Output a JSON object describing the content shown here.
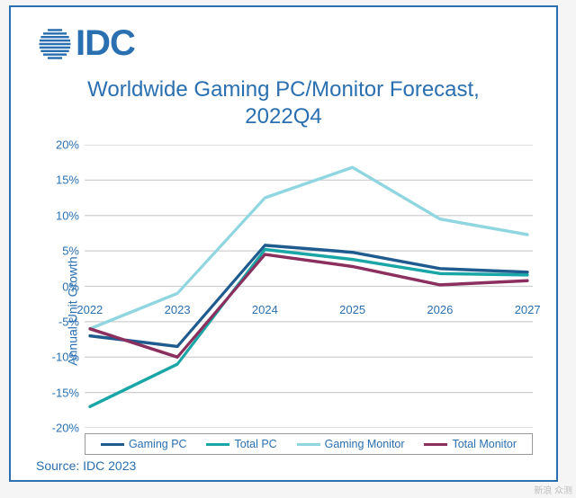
{
  "border_color": "#2a6fb0",
  "logo": {
    "color": "#2a6fb0",
    "text": "IDC"
  },
  "title": "Worldwide Gaming PC/Monitor Forecast, 2022Q4",
  "title_color": "#2a6fb0",
  "chart": {
    "type": "line",
    "ylabel": "Annual Unit Growth",
    "ylabel_color": "#2a6fb0",
    "categories": [
      "2022",
      "2023",
      "2024",
      "2025",
      "2026",
      "2027"
    ],
    "ylim": [
      -20,
      20
    ],
    "ytick_step": 5,
    "y_suffix": "%",
    "grid_color": "#cfcfcf",
    "tick_label_color": "#2a6fb0",
    "series": [
      {
        "name": "Gaming PC",
        "color": "#1f5b8e",
        "width": 3,
        "values": [
          -7,
          -8.5,
          5.8,
          4.8,
          2.5,
          2
        ]
      },
      {
        "name": "Total PC",
        "color": "#1aa6a6",
        "width": 3,
        "values": [
          -17,
          -11,
          5.2,
          3.8,
          1.8,
          1.6
        ]
      },
      {
        "name": "Gaming Monitor",
        "color": "#8fd6e0",
        "width": 3,
        "values": [
          -6,
          -1,
          12.5,
          16.8,
          9.5,
          7.3
        ]
      },
      {
        "name": "Total Monitor",
        "color": "#8b2f5e",
        "width": 3,
        "values": [
          -6,
          -10,
          4.5,
          2.8,
          0.2,
          0.8
        ]
      }
    ],
    "legend_border": "#999999"
  },
  "source": {
    "label": "Source: IDC 2023",
    "color": "#2a6fb0"
  },
  "watermark": "新浪 众测"
}
